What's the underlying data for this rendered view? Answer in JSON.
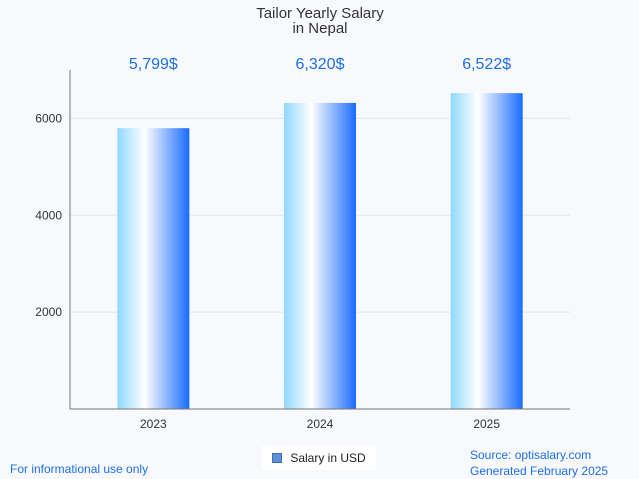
{
  "chart_data": {
    "type": "bar",
    "title": [
      "Tailor Yearly Salary",
      "in Nepal"
    ],
    "categories": [
      "2023",
      "2024",
      "2025"
    ],
    "values": [
      5799,
      6320,
      6522
    ],
    "value_labels": [
      "5,799$",
      "6,320$",
      "6,522$"
    ],
    "series": [
      {
        "name": "Salary in USD",
        "values": [
          5799,
          6320,
          6522
        ]
      }
    ],
    "ylim": [
      0,
      7000
    ],
    "yticks": [
      2000,
      4000,
      6000
    ],
    "xlabel": "",
    "ylabel": "",
    "grid": true,
    "legend": "bottom-center"
  },
  "legend": {
    "label": "Salary in USD"
  },
  "footer": {
    "disclaimer": "For informational use only",
    "source": "Source: optisalary.com",
    "generated": "Generated February 2025"
  },
  "colors": {
    "accent": "#1f6fe0",
    "bar_light": "#8fd8ff",
    "bar_dark": "#1a6bff",
    "grid": "#e3e6ec",
    "axis": "#777777"
  }
}
